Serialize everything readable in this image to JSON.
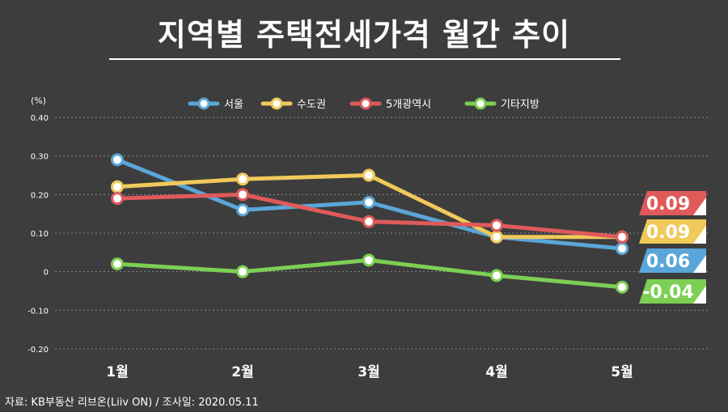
{
  "title": "지역별 주택전세가격 월간 추이",
  "source": "자료: KB부동산 리브온(Liiv ON) / 조사일: 2020.05.11",
  "colors": {
    "background": "#3d3d3d",
    "seoul": "#5aa6d8",
    "capital_area": "#f0c95a",
    "metro5": "#e05a5a",
    "other": "#7ccf53"
  },
  "chart_data": {
    "type": "line",
    "title": "지역별 주택전세가격 월간 추이",
    "unit_label": "(%)",
    "categories": [
      "1월",
      "2월",
      "3월",
      "4월",
      "5월"
    ],
    "ylim": [
      -0.2,
      0.4
    ],
    "yticks": [
      "0.40",
      "0.30",
      "0.20",
      "0.10",
      "0",
      "-0.10",
      "-0.20"
    ],
    "ytick_values": [
      0.4,
      0.3,
      0.2,
      0.1,
      0,
      -0.1,
      -0.2
    ],
    "grid": true,
    "legend": "top",
    "series": [
      {
        "name": "서울",
        "color": "#5aa6d8",
        "values": [
          0.29,
          0.16,
          0.18,
          0.09,
          0.06
        ],
        "end_label": "0.06"
      },
      {
        "name": "수도권",
        "color": "#f0c95a",
        "values": [
          0.22,
          0.24,
          0.25,
          0.09,
          0.09
        ],
        "end_label": "0.09"
      },
      {
        "name": "5개광역시",
        "color": "#e05a5a",
        "values": [
          0.19,
          0.2,
          0.13,
          0.12,
          0.09
        ],
        "end_label": "0.09"
      },
      {
        "name": "기타지방",
        "color": "#7ccf53",
        "values": [
          0.02,
          0.0,
          0.03,
          -0.01,
          -0.04
        ],
        "end_label": "-0.04"
      }
    ]
  }
}
